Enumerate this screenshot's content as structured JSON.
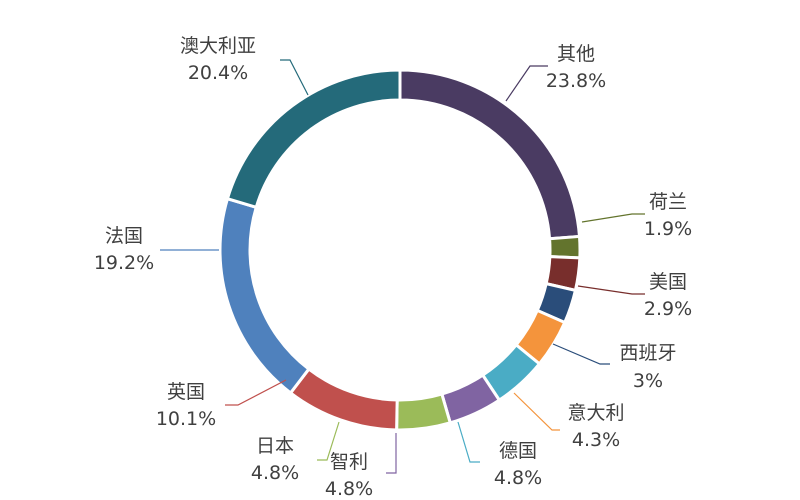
{
  "chart_data": {
    "type": "pie",
    "variant": "donut",
    "title": "",
    "slices": [
      {
        "label": "其他",
        "value": 23.8,
        "display": "23.8%",
        "color": "#4a3b62"
      },
      {
        "label": "荷兰",
        "value": 1.9,
        "display": "1.9%",
        "color": "#63742d"
      },
      {
        "label": "美国",
        "value": 2.9,
        "display": "2.9%",
        "color": "#782e2c"
      },
      {
        "label": "西班牙",
        "value": 3.0,
        "display": "3%",
        "color": "#2a4d7a"
      },
      {
        "label": "意大利",
        "value": 4.3,
        "display": "4.3%",
        "color": "#f4943c"
      },
      {
        "label": "德国",
        "value": 4.8,
        "display": "4.8%",
        "color": "#4aacc5"
      },
      {
        "label": "智利",
        "value": 4.8,
        "display": "4.8%",
        "color": "#8064a2"
      },
      {
        "label": "日本",
        "value": 4.8,
        "display": "4.8%",
        "color": "#9bbb59"
      },
      {
        "label": "英国",
        "value": 10.1,
        "display": "10.1%",
        "color": "#c0504d"
      },
      {
        "label": "法国",
        "value": 19.2,
        "display": "19.2%",
        "color": "#4f81bd"
      },
      {
        "label": "澳大利亚",
        "value": 20.4,
        "display": "20.4%",
        "color": "#246a7a"
      }
    ]
  }
}
